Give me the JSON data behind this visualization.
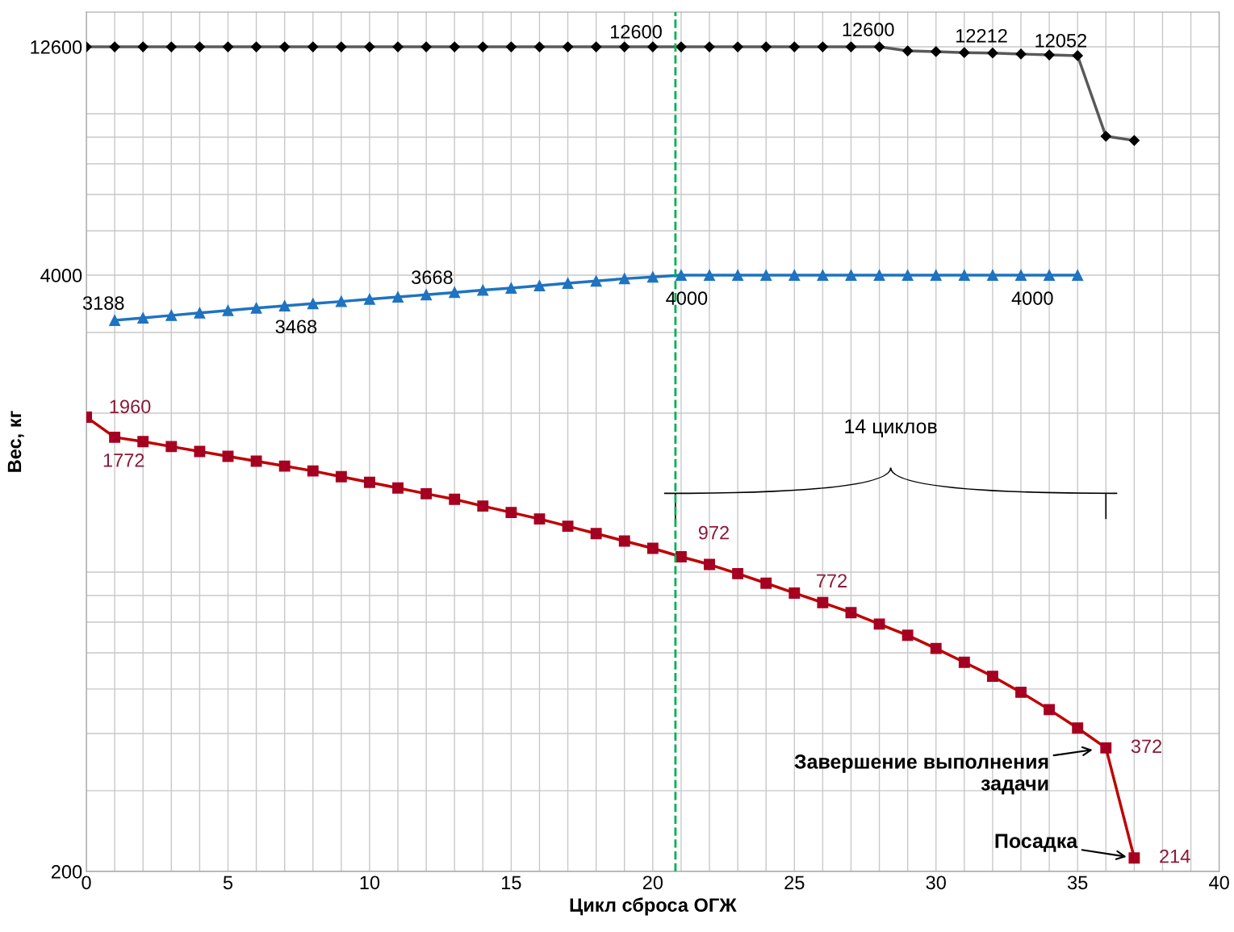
{
  "chart_data": {
    "type": "line",
    "xlabel": "Цикл сброса ОГЖ",
    "ylabel": "Вес, кг",
    "log": "y",
    "xlim": [
      0,
      40
    ],
    "xticks": [
      0,
      5,
      10,
      15,
      20,
      25,
      30,
      35,
      40
    ],
    "ylim": [
      200,
      15000
    ],
    "yticks": [
      200,
      4000,
      12600
    ],
    "grid": true,
    "line_style": "solid",
    "series": [
      {
        "color": "#595959",
        "marker": "diamond",
        "x": [
          0,
          1,
          2,
          3,
          4,
          5,
          6,
          7,
          8,
          9,
          10,
          11,
          12,
          13,
          14,
          15,
          16,
          17,
          18,
          19,
          20,
          21,
          22,
          23,
          24,
          25,
          26,
          27,
          28,
          29,
          30,
          31,
          32,
          33,
          34,
          35,
          36,
          37
        ],
        "values": [
          12600,
          12600,
          12600,
          12600,
          12600,
          12600,
          12600,
          12600,
          12600,
          12600,
          12600,
          12600,
          12600,
          12600,
          12600,
          12600,
          12600,
          12600,
          12600,
          12600,
          12600,
          12600,
          12600,
          12600,
          12600,
          12600,
          12600,
          12600,
          12600,
          12344,
          12300,
          12240,
          12212,
          12150,
          12100,
          12052,
          8040,
          7870
        ],
        "value_labels": [
          null,
          null,
          null,
          null,
          null,
          null,
          null,
          null,
          null,
          null,
          null,
          null,
          null,
          null,
          null,
          null,
          null,
          null,
          null,
          null,
          "12600",
          null,
          null,
          null,
          null,
          null,
          null,
          null,
          "12600",
          null,
          null,
          null,
          "12212",
          null,
          null,
          "12052",
          null,
          null
        ]
      },
      {
        "color": "#1f73c0",
        "marker": "triangle",
        "x": [
          1,
          2,
          3,
          4,
          5,
          6,
          7,
          8,
          9,
          10,
          11,
          12,
          13,
          14,
          15,
          16,
          17,
          18,
          19,
          20,
          21,
          22,
          23,
          24,
          25,
          26,
          27,
          28,
          29,
          30,
          31,
          32,
          33,
          34,
          35
        ],
        "values": [
          3188,
          3227,
          3268,
          3310,
          3350,
          3390,
          3430,
          3468,
          3505,
          3545,
          3585,
          3625,
          3668,
          3710,
          3750,
          3795,
          3840,
          3885,
          3930,
          3965,
          4000,
          4000,
          4000,
          4000,
          4000,
          4000,
          4000,
          4000,
          4000,
          4000,
          4000,
          4000,
          4000,
          4000,
          4000
        ],
        "value_labels": [
          "3188",
          null,
          null,
          null,
          null,
          null,
          null,
          "3468",
          null,
          null,
          null,
          null,
          "3668",
          null,
          null,
          null,
          null,
          null,
          null,
          null,
          "4000",
          null,
          null,
          null,
          null,
          null,
          null,
          null,
          null,
          null,
          null,
          null,
          null,
          "4000",
          null
        ]
      },
      {
        "color": "#c00000",
        "marker": "square",
        "x": [
          0,
          1,
          2,
          3,
          4,
          5,
          6,
          7,
          8,
          9,
          10,
          11,
          12,
          13,
          14,
          15,
          16,
          17,
          18,
          19,
          20,
          21,
          22,
          23,
          24,
          25,
          26,
          27,
          28,
          29,
          30,
          31,
          32,
          33,
          34,
          35,
          36,
          37
        ],
        "values": [
          1960,
          1772,
          1734,
          1691,
          1650,
          1610,
          1571,
          1533,
          1496,
          1453,
          1413,
          1373,
          1334,
          1297,
          1254,
          1214,
          1175,
          1133,
          1092,
          1052,
          1014,
          972,
          935,
          893,
          851,
          810,
          772,
          734,
          693,
          655,
          613,
          572,
          533,
          492,
          451,
          411,
          372,
          214
        ],
        "value_labels": [
          "1960",
          "1772",
          null,
          null,
          null,
          null,
          null,
          null,
          null,
          null,
          null,
          null,
          null,
          null,
          null,
          null,
          null,
          null,
          null,
          null,
          null,
          "972",
          null,
          null,
          null,
          null,
          "772",
          null,
          null,
          null,
          null,
          null,
          null,
          null,
          null,
          null,
          "372",
          "214"
        ]
      }
    ],
    "ref_lines": [
      {
        "axis": "x",
        "value": 20.8,
        "color": "#00b050",
        "line_style": "dashed"
      }
    ],
    "annotations": [
      "14 циклов",
      {
        "text": "Завершение выполнения\nзадачи",
        "x": 36,
        "y": 372
      },
      {
        "text": "Посадка",
        "x": 37,
        "y": 214
      }
    ]
  }
}
